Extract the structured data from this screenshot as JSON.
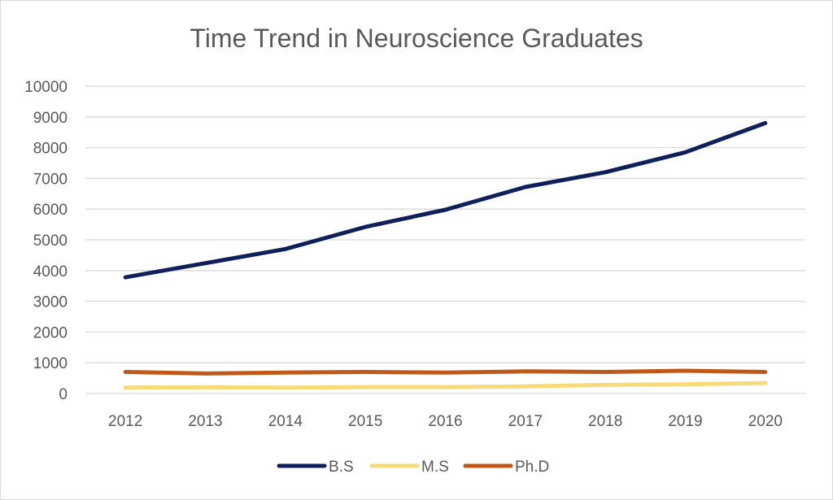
{
  "chart_data": {
    "type": "line",
    "title": "Time Trend in Neuroscience Graduates",
    "xlabel": "",
    "ylabel": "",
    "categories": [
      "2012",
      "2013",
      "2014",
      "2015",
      "2016",
      "2017",
      "2018",
      "2019",
      "2020"
    ],
    "ylim": [
      0,
      10000
    ],
    "yticks": [
      0,
      1000,
      2000,
      3000,
      4000,
      5000,
      6000,
      7000,
      8000,
      9000,
      10000
    ],
    "grid": true,
    "legend_position": "bottom",
    "series": [
      {
        "name": "B.S",
        "color": "#0f1f5c",
        "values": [
          3780,
          4240,
          4700,
          5420,
          5980,
          6720,
          7200,
          7850,
          8800
        ]
      },
      {
        "name": "M.S",
        "color": "#f9da78",
        "values": [
          190,
          200,
          190,
          210,
          210,
          230,
          280,
          300,
          340
        ]
      },
      {
        "name": "Ph.D",
        "color": "#c0581a",
        "values": [
          700,
          650,
          680,
          700,
          680,
          720,
          700,
          740,
          700
        ]
      }
    ]
  }
}
